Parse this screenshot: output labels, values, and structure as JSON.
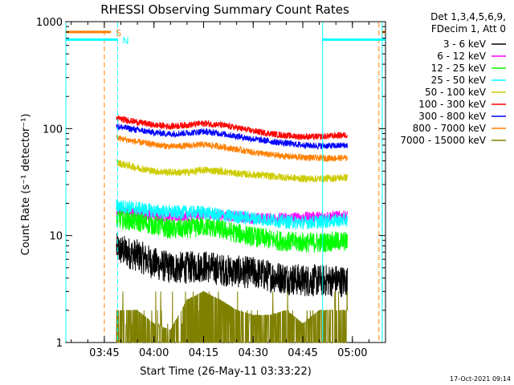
{
  "chart_data": {
    "type": "line",
    "title": "RHESSI Observing Summary Count Rates",
    "xlabel": "Start Time (26-May-11 03:33:22)",
    "ylabel": "Count Rate (s⁻¹ detector⁻¹)",
    "y_scale": "log",
    "ylim": [
      1,
      1000
    ],
    "xlim": [
      "03:33:22",
      "05:10:00"
    ],
    "x_ticks": [
      "03:45",
      "04:00",
      "04:15",
      "04:30",
      "04:45",
      "05:00"
    ],
    "y_ticks": [
      "1",
      "10",
      "100",
      "1000"
    ],
    "legend": {
      "header": [
        "Det 1,3,4,5,6,9,",
        "FDecim 1, Att 0"
      ],
      "placement": "top-right-outside"
    },
    "series": [
      {
        "name": "3 - 6 keV",
        "color": "#000000",
        "x": [
          "03:48:40",
          "03:55",
          "04:00",
          "04:05",
          "04:10",
          "04:15",
          "04:20",
          "04:25",
          "04:30",
          "04:35",
          "04:40",
          "04:45",
          "04:50",
          "04:55",
          "04:58:30"
        ],
        "values": [
          7.5,
          6.5,
          5.5,
          5.0,
          5.0,
          5.2,
          4.8,
          4.6,
          4.5,
          4.2,
          4.0,
          3.8,
          3.8,
          3.8,
          3.7
        ]
      },
      {
        "name": "6 - 12 keV",
        "color": "#ff00ff",
        "x": [
          "03:48:40",
          "03:55",
          "04:00",
          "04:05",
          "04:10",
          "04:15",
          "04:20",
          "04:25",
          "04:30",
          "04:35",
          "04:40",
          "04:45",
          "04:50",
          "04:55",
          "04:58:30"
        ],
        "values": [
          17,
          16,
          15.5,
          15,
          15.2,
          15.8,
          15.5,
          15.0,
          14.5,
          14.5,
          14.5,
          14.8,
          15.0,
          15.2,
          15.2
        ]
      },
      {
        "name": "12 - 25 keV",
        "color": "#00ff00",
        "x": [
          "03:48:40",
          "03:55",
          "04:00",
          "04:05",
          "04:10",
          "04:15",
          "04:20",
          "04:25",
          "04:30",
          "04:35",
          "04:40",
          "04:45",
          "04:50",
          "04:55",
          "04:58:30"
        ],
        "values": [
          14.5,
          13.5,
          12.5,
          11.5,
          11.5,
          12.2,
          11.5,
          10.5,
          9.8,
          9.2,
          8.8,
          8.6,
          8.6,
          8.8,
          8.8
        ]
      },
      {
        "name": "25 - 50 keV",
        "color": "#00ffff",
        "x": [
          "03:48:40",
          "03:55",
          "04:00",
          "04:05",
          "04:10",
          "04:15",
          "04:20",
          "04:25",
          "04:30",
          "04:35",
          "04:40",
          "04:45",
          "04:50",
          "04:55",
          "04:58:30"
        ],
        "values": [
          19,
          18,
          17,
          16.5,
          16.5,
          16.5,
          15.5,
          15,
          14.5,
          14,
          13.5,
          13.2,
          13.5,
          13.8,
          14
        ]
      },
      {
        "name": "50 - 100 keV",
        "color": "#cccc00",
        "x": [
          "03:48:40",
          "03:55",
          "04:00",
          "04:05",
          "04:10",
          "04:15",
          "04:20",
          "04:25",
          "04:30",
          "04:35",
          "04:40",
          "04:45",
          "04:50",
          "04:55",
          "04:58:30"
        ],
        "values": [
          48,
          43,
          40,
          39,
          39,
          41,
          40,
          38,
          37,
          36,
          35,
          34,
          34,
          34.5,
          35
        ]
      },
      {
        "name": "100 - 300 keV",
        "color": "#ff0000",
        "x": [
          "03:48:40",
          "03:55",
          "04:00",
          "04:05",
          "04:10",
          "04:15",
          "04:20",
          "04:25",
          "04:30",
          "04:35",
          "04:40",
          "04:45",
          "04:50",
          "04:55",
          "04:58:30"
        ],
        "values": [
          125,
          115,
          108,
          105,
          108,
          112,
          108,
          102,
          95,
          90,
          86,
          84,
          84,
          86,
          87
        ]
      },
      {
        "name": "300 - 800 keV",
        "color": "#0000ff",
        "x": [
          "03:48:40",
          "03:55",
          "04:00",
          "04:05",
          "04:10",
          "04:15",
          "04:20",
          "04:25",
          "04:30",
          "04:35",
          "04:40",
          "04:45",
          "04:50",
          "04:55",
          "04:58:30"
        ],
        "values": [
          105,
          97,
          92,
          89,
          91,
          94,
          90,
          85,
          80,
          76,
          73,
          70,
          69,
          69,
          70
        ]
      },
      {
        "name": "800 - 7000 keV",
        "color": "#ff8000",
        "x": [
          "03:48:40",
          "03:55",
          "04:00",
          "04:05",
          "04:10",
          "04:15",
          "04:20",
          "04:25",
          "04:30",
          "04:35",
          "04:40",
          "04:45",
          "04:50",
          "04:55",
          "04:58:30"
        ],
        "values": [
          82,
          75,
          71,
          68,
          69,
          71,
          68,
          64,
          60,
          57,
          55,
          54,
          53,
          53,
          53
        ]
      },
      {
        "name": "7000 - 15000 keV",
        "color": "#808000",
        "x": [
          "03:48:40",
          "03:55",
          "04:00",
          "04:05",
          "04:10",
          "04:15",
          "04:20",
          "04:25",
          "04:30",
          "04:35",
          "04:40",
          "04:45",
          "04:50",
          "04:55",
          "04:58:30"
        ],
        "values": [
          2,
          2,
          1.5,
          1.3,
          2.5,
          3,
          2.5,
          2,
          1.8,
          1.8,
          2,
          1.5,
          2,
          2,
          2
        ]
      }
    ],
    "annotations": [
      {
        "label": "S",
        "color": "#ff8000",
        "x_start": "03:33:22",
        "x_end": "03:47:00",
        "y": 800
      },
      {
        "label": "N",
        "color": "#00ffff",
        "x_start": "03:33:22",
        "x_end": "03:49:00",
        "y": 680
      },
      {
        "label": "",
        "color": "#00ffff",
        "x_start": "04:51:00",
        "x_end": "05:10:00",
        "y": 680
      },
      {
        "label": "",
        "color": "#ff8000",
        "x_start": "05:09:00",
        "x_end": "05:10:00",
        "y": 800
      }
    ],
    "event_lines": [
      {
        "x": "03:33:22",
        "color": "#00ffff",
        "style": "solid"
      },
      {
        "x": "03:45:00",
        "color": "#ff8000",
        "style": "dashed"
      },
      {
        "x": "03:49:00",
        "color": "#00ffff",
        "style": "dashed"
      },
      {
        "x": "04:51:00",
        "color": "#00ffff",
        "style": "solid"
      },
      {
        "x": "05:08:00",
        "color": "#ff8000",
        "style": "dashed"
      },
      {
        "x": "05:09:00",
        "color": "#00ffff",
        "style": "solid"
      }
    ],
    "footer_date": "17-Oct-2021 09:14"
  }
}
